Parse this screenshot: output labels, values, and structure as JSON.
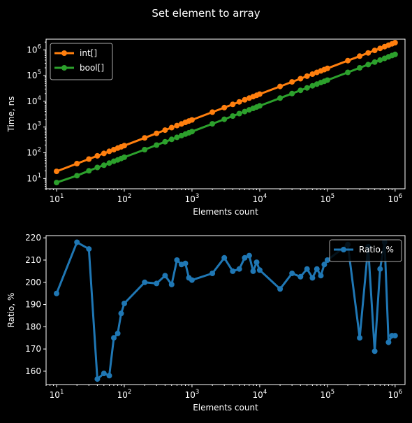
{
  "figure_title": "Set element to array",
  "chart_data": [
    {
      "type": "line",
      "title": "",
      "xlabel": "Elements count",
      "ylabel": "Time, ns",
      "xscale": "log",
      "yscale": "log",
      "xlim": [
        7,
        1400000
      ],
      "ylim": [
        4,
        2600000
      ],
      "x_ticks": [
        {
          "base": "10",
          "exp": "1"
        },
        {
          "base": "10",
          "exp": "2"
        },
        {
          "base": "10",
          "exp": "3"
        },
        {
          "base": "10",
          "exp": "4"
        },
        {
          "base": "10",
          "exp": "5"
        },
        {
          "base": "10",
          "exp": "6"
        }
      ],
      "y_ticks": [
        {
          "base": "10",
          "exp": "1"
        },
        {
          "base": "10",
          "exp": "2"
        },
        {
          "base": "10",
          "exp": "3"
        },
        {
          "base": "10",
          "exp": "4"
        },
        {
          "base": "10",
          "exp": "5"
        },
        {
          "base": "10",
          "exp": "6"
        }
      ],
      "legend_position": "top-left",
      "grid": false,
      "x": [
        10,
        20,
        30,
        40,
        50,
        60,
        70,
        80,
        90,
        100,
        200,
        300,
        400,
        500,
        600,
        700,
        800,
        900,
        1000,
        2000,
        3000,
        4000,
        5000,
        6000,
        7000,
        8000,
        9000,
        10000,
        20000,
        30000,
        40000,
        50000,
        60000,
        70000,
        80000,
        90000,
        100000,
        200000,
        300000,
        400000,
        500000,
        600000,
        700000,
        800000,
        900000,
        1000000
      ],
      "series": [
        {
          "name": "int[]",
          "color": "#ff7f0e",
          "values": [
            19,
            38,
            57,
            76,
            95,
            114,
            133,
            152,
            171,
            190,
            380,
            570,
            760,
            950,
            1140,
            1330,
            1520,
            1710,
            1900,
            3800,
            5700,
            7600,
            9500,
            11400,
            13300,
            15200,
            17100,
            19000,
            38000,
            57000,
            76000,
            95000,
            114000,
            133000,
            152000,
            171000,
            190000,
            380000,
            570000,
            760000,
            950000,
            1140000,
            1330000,
            1520000,
            1710000,
            1900000
          ]
        },
        {
          "name": "bool[]",
          "color": "#2ca02c",
          "values": [
            7,
            13,
            20,
            27,
            33,
            40,
            47,
            53,
            60,
            67,
            133,
            200,
            267,
            333,
            400,
            467,
            533,
            600,
            667,
            1333,
            2000,
            2667,
            3333,
            4000,
            4667,
            5333,
            6000,
            6667,
            13333,
            20000,
            26667,
            33333,
            40000,
            46667,
            53333,
            60000,
            66667,
            133333,
            200000,
            266667,
            333333,
            400000,
            466667,
            533333,
            600000,
            666667
          ]
        }
      ]
    },
    {
      "type": "line",
      "title": "",
      "xlabel": "Elements count",
      "ylabel": "Ratio, %",
      "xscale": "log",
      "yscale": "linear",
      "xlim": [
        7,
        1400000
      ],
      "ylim": [
        154,
        221
      ],
      "x_ticks": [
        {
          "base": "10",
          "exp": "1"
        },
        {
          "base": "10",
          "exp": "2"
        },
        {
          "base": "10",
          "exp": "3"
        },
        {
          "base": "10",
          "exp": "4"
        },
        {
          "base": "10",
          "exp": "5"
        },
        {
          "base": "10",
          "exp": "6"
        }
      ],
      "y_ticks": [
        "160",
        "170",
        "180",
        "190",
        "200",
        "210",
        "220"
      ],
      "legend_position": "top-right",
      "grid": false,
      "x": [
        10,
        20,
        30,
        40,
        50,
        60,
        70,
        80,
        90,
        100,
        200,
        300,
        400,
        500,
        600,
        700,
        800,
        900,
        1000,
        2000,
        3000,
        4000,
        5000,
        6000,
        7000,
        8000,
        9000,
        10000,
        20000,
        30000,
        40000,
        50000,
        60000,
        70000,
        80000,
        90000,
        100000,
        200000,
        300000,
        400000,
        500000,
        600000,
        700000,
        800000,
        900000,
        1000000
      ],
      "series": [
        {
          "name": "Ratio, %",
          "color": "#1f77b4",
          "values": [
            195,
            218,
            215,
            156.5,
            159,
            158,
            175,
            177,
            186,
            190.5,
            200,
            199.5,
            203,
            199,
            210,
            208,
            208.5,
            202,
            201,
            204,
            211,
            205,
            206,
            211,
            212,
            205,
            209,
            205.5,
            197,
            204,
            202.5,
            206,
            202,
            206,
            203,
            208,
            210,
            217,
            175,
            216,
            169,
            206,
            218,
            173,
            176,
            176
          ]
        }
      ]
    }
  ]
}
